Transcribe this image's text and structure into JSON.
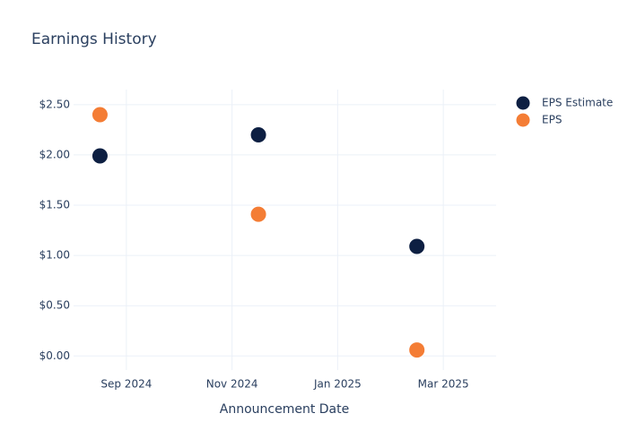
{
  "chart_data": {
    "type": "scatter",
    "title": "Earnings History",
    "x_label": "Announcement Date",
    "x": [
      "2024-08",
      "2024-11",
      "2025-02"
    ],
    "series": [
      {
        "name": "EPS Estimate",
        "color": "#0d1f42",
        "values": [
          1.99,
          2.2,
          1.09
        ]
      },
      {
        "name": "EPS",
        "color": "#f47d35",
        "values": [
          2.4,
          1.41,
          0.06
        ]
      }
    ],
    "xlim": [
      "2024-08",
      "2025-03"
    ],
    "xticks": [
      {
        "value": "2024-09",
        "label": "Sep 2024"
      },
      {
        "value": "2024-11",
        "label": "Nov 2024"
      },
      {
        "value": "2025-01",
        "label": "Jan 2025"
      },
      {
        "value": "2025-03",
        "label": "Mar 2025"
      }
    ],
    "ylim": [
      -0.14,
      2.65
    ],
    "yticks": [
      {
        "value": 0,
        "label": "$0.00"
      },
      {
        "value": 0.5,
        "label": "$0.50"
      },
      {
        "value": 1,
        "label": "$1.00"
      },
      {
        "value": 1.5,
        "label": "$1.50"
      },
      {
        "value": 2,
        "label": "$2.00"
      },
      {
        "value": 2.5,
        "label": "$2.50"
      }
    ],
    "grid": true,
    "legend": "top-right"
  }
}
